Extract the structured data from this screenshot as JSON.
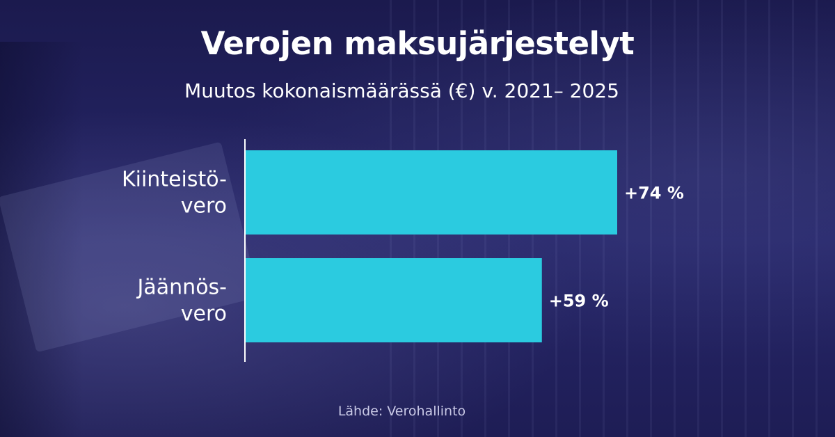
{
  "chart_data": {
    "type": "bar",
    "orientation": "horizontal",
    "title": "Verojen maksujärjestelyt",
    "subtitle": "Muutos kokonaismäärässä (€) v. 2021– 2025",
    "categories": [
      [
        "Kiinteistö-",
        "vero"
      ],
      [
        "Jäännös-",
        "vero"
      ]
    ],
    "values": [
      74,
      59
    ],
    "value_labels": [
      "+74 %",
      "+59 %"
    ],
    "xlim": [
      0,
      74
    ],
    "grid": false,
    "legend": "none",
    "bar_color": "#2bcbe0",
    "source": "Lähde: Verohallinto"
  },
  "colors": {
    "background": "#1f1f5c",
    "bar": "#2bcbe0",
    "text": "#ffffff",
    "source_text": "#c9c9e6"
  }
}
